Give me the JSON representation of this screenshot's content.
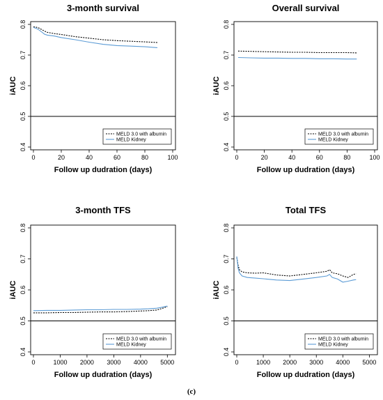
{
  "caption": "(c)",
  "chart_data": [
    {
      "type": "line",
      "title": "3-month survival",
      "xlabel": "Follow up dudration (days)",
      "ylabel": "iAUC",
      "xlim": [
        0,
        100
      ],
      "ylim": [
        0.4,
        0.8
      ],
      "xticks": [
        "0",
        "20",
        "40",
        "60",
        "80",
        "100"
      ],
      "yticks": [
        "0.4",
        "0.5",
        "0.6",
        "0.7",
        "0.8"
      ],
      "hline": 0.5,
      "legend_position": "bottom-right",
      "series": [
        {
          "name": "MELD 3.0 with albumin",
          "style": "dashed",
          "color": "#000000",
          "x": [
            0,
            2,
            4,
            6,
            8,
            10,
            15,
            20,
            30,
            40,
            50,
            60,
            70,
            80,
            89
          ],
          "y": [
            0.792,
            0.791,
            0.788,
            0.783,
            0.778,
            0.774,
            0.77,
            0.767,
            0.76,
            0.755,
            0.75,
            0.747,
            0.745,
            0.743,
            0.741
          ]
        },
        {
          "name": "MELD Kidney",
          "style": "solid",
          "color": "#5b9bd5",
          "x": [
            0,
            2,
            4,
            6,
            8,
            10,
            15,
            20,
            30,
            40,
            50,
            60,
            70,
            80,
            89
          ],
          "y": [
            0.79,
            0.787,
            0.782,
            0.775,
            0.768,
            0.765,
            0.762,
            0.757,
            0.75,
            0.742,
            0.735,
            0.731,
            0.729,
            0.727,
            0.724
          ]
        }
      ]
    },
    {
      "type": "line",
      "title": "Overall survival",
      "xlabel": "Follow up dudration (days)",
      "ylabel": "iAUC",
      "xlim": [
        0,
        100
      ],
      "ylim": [
        0.4,
        0.8
      ],
      "xticks": [
        "0",
        "20",
        "40",
        "60",
        "80",
        "100"
      ],
      "yticks": [
        "0.4",
        "0.5",
        "0.6",
        "0.7",
        "0.8"
      ],
      "hline": 0.5,
      "legend_position": "bottom-right",
      "series": [
        {
          "name": "MELD 3.0 with albumin",
          "style": "dashed",
          "color": "#000000",
          "x": [
            1,
            10,
            20,
            30,
            40,
            50,
            60,
            70,
            80,
            87
          ],
          "y": [
            0.713,
            0.712,
            0.711,
            0.71,
            0.709,
            0.709,
            0.708,
            0.708,
            0.708,
            0.707
          ]
        },
        {
          "name": "MELD Kidney",
          "style": "solid",
          "color": "#5b9bd5",
          "x": [
            1,
            10,
            20,
            30,
            40,
            50,
            60,
            70,
            80,
            87
          ],
          "y": [
            0.692,
            0.691,
            0.69,
            0.69,
            0.689,
            0.689,
            0.688,
            0.688,
            0.687,
            0.687
          ]
        }
      ]
    },
    {
      "type": "line",
      "title": "3-month TFS",
      "xlabel": "Follow up dudration (days)",
      "ylabel": "iAUC",
      "xlim": [
        0,
        5200
      ],
      "ylim": [
        0.4,
        0.8
      ],
      "xticks": [
        "0",
        "1000",
        "2000",
        "3000",
        "4000",
        "5000"
      ],
      "yticks": [
        "0.4",
        "0.5",
        "0.6",
        "0.7",
        "0.8"
      ],
      "hline": 0.5,
      "legend_position": "bottom-right",
      "series": [
        {
          "name": "MELD 3.0 with albumin",
          "style": "dashed",
          "color": "#000000",
          "x": [
            0,
            500,
            1000,
            1500,
            2000,
            2500,
            3000,
            3500,
            4000,
            4300,
            4600,
            4800,
            5000
          ],
          "y": [
            0.526,
            0.526,
            0.527,
            0.527,
            0.528,
            0.529,
            0.529,
            0.53,
            0.532,
            0.533,
            0.535,
            0.54,
            0.546
          ]
        },
        {
          "name": "MELD Kidney",
          "style": "solid",
          "color": "#5b9bd5",
          "x": [
            0,
            500,
            1000,
            1500,
            2000,
            2500,
            3000,
            3500,
            4000,
            4300,
            4600,
            4800,
            5000
          ],
          "y": [
            0.533,
            0.534,
            0.534,
            0.535,
            0.536,
            0.536,
            0.537,
            0.537,
            0.538,
            0.539,
            0.541,
            0.544,
            0.548
          ]
        }
      ]
    },
    {
      "type": "line",
      "title": "Total TFS",
      "xlabel": "Follow up dudration (days)",
      "ylabel": "iAUC",
      "xlim": [
        0,
        5200
      ],
      "ylim": [
        0.4,
        0.8
      ],
      "xticks": [
        "0",
        "1000",
        "2000",
        "3000",
        "4000",
        "5000"
      ],
      "yticks": [
        "0.4",
        "0.5",
        "0.6",
        "0.7",
        "0.8"
      ],
      "hline": 0.5,
      "legend_position": "bottom-right",
      "series": [
        {
          "name": "MELD 3.0 with albumin",
          "style": "dashed",
          "color": "#000000",
          "x": [
            0,
            50,
            100,
            200,
            400,
            700,
            1000,
            1500,
            2000,
            2500,
            3000,
            3400,
            3500,
            3600,
            3800,
            4000,
            4200,
            4400,
            4500
          ],
          "y": [
            0.705,
            0.68,
            0.665,
            0.658,
            0.655,
            0.654,
            0.655,
            0.648,
            0.645,
            0.65,
            0.655,
            0.66,
            0.665,
            0.655,
            0.652,
            0.645,
            0.64,
            0.65,
            0.652
          ]
        },
        {
          "name": "MELD Kidney",
          "style": "solid",
          "color": "#5b9bd5",
          "x": [
            0,
            50,
            100,
            200,
            400,
            700,
            1000,
            1500,
            2000,
            2500,
            3000,
            3400,
            3500,
            3600,
            3800,
            4000,
            4200,
            4400,
            4500
          ],
          "y": [
            0.708,
            0.67,
            0.655,
            0.645,
            0.64,
            0.638,
            0.636,
            0.632,
            0.63,
            0.635,
            0.64,
            0.645,
            0.65,
            0.64,
            0.635,
            0.625,
            0.628,
            0.632,
            0.633
          ]
        }
      ]
    }
  ]
}
